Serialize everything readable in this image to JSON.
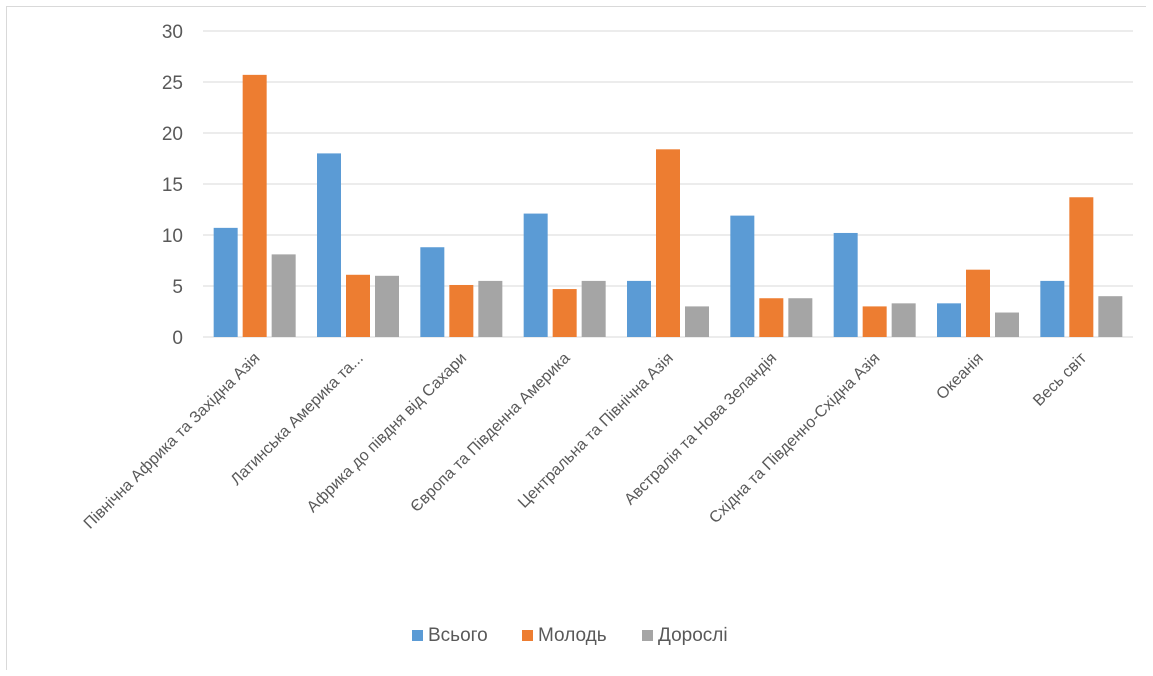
{
  "chart_data": {
    "type": "bar",
    "categories": [
      "Північна Африка та Західна Азія",
      "Латинська Америка та...",
      "Африка до півдня від Сахари",
      "Європа  та Південна Америка",
      "Центральна та Північна Азія",
      "Австралія та Нова Зеландія",
      "Східна та Південно-Східна Азія",
      "Океанія",
      "Весь світ"
    ],
    "series": [
      {
        "name": "Всього",
        "color": "#5b9bd5",
        "values": [
          10.7,
          18.0,
          8.8,
          12.1,
          5.5,
          11.9,
          10.2,
          3.3,
          5.5
        ]
      },
      {
        "name": "Молодь",
        "color": "#ed7d31",
        "values": [
          25.7,
          6.1,
          5.1,
          4.7,
          18.4,
          3.8,
          3.0,
          6.6,
          13.7
        ]
      },
      {
        "name": "Дорослі",
        "color": "#a5a5a5",
        "values": [
          8.1,
          6.0,
          5.5,
          5.5,
          3.0,
          3.8,
          3.3,
          2.4,
          4.0
        ]
      }
    ],
    "ylim": [
      0,
      30
    ],
    "yticks": [
      0,
      5,
      10,
      15,
      20,
      25,
      30
    ],
    "grid": true,
    "legend_position": "bottom"
  }
}
